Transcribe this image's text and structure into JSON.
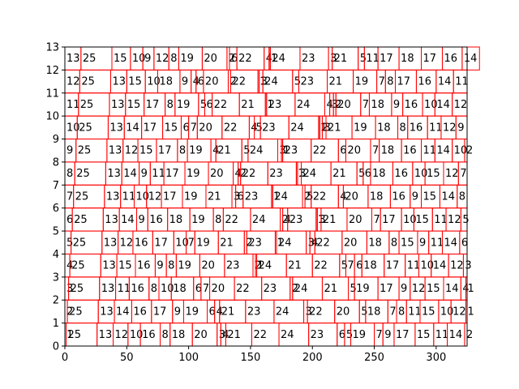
{
  "chart_data": {
    "type": "heatmap",
    "title": "",
    "xlabel": "",
    "ylabel": "",
    "xlim": [
      0,
      325
    ],
    "ylim": [
      0,
      13
    ],
    "grid": false,
    "legend": "none",
    "cell_color": "#ff0000",
    "text_color": "#000000",
    "x_ticks": [
      0,
      50,
      100,
      150,
      200,
      250,
      300
    ],
    "x_tick_labels": [
      "0",
      "50",
      "100",
      "150",
      "200",
      "250",
      "300"
    ],
    "y_ticks": [
      0,
      1,
      2,
      3,
      4,
      5,
      6,
      7,
      8,
      9,
      10,
      11,
      12,
      13
    ],
    "y_tick_labels": [
      "0",
      "1",
      "2",
      "3",
      "4",
      "5",
      "6",
      "7",
      "8",
      "9",
      "10",
      "11",
      "12",
      "13"
    ],
    "rows": [
      [
        1,
        25,
        13,
        12,
        10,
        16,
        8,
        18,
        20,
        3,
        4,
        21,
        22,
        24,
        23,
        6,
        5,
        19,
        7,
        9,
        17,
        15,
        11,
        14,
        2
      ],
      [
        2,
        25,
        13,
        14,
        16,
        17,
        9,
        19,
        6,
        4,
        21,
        23,
        24,
        3,
        22,
        20,
        5,
        18,
        7,
        8,
        11,
        15,
        10,
        12,
        1
      ],
      [
        3,
        25,
        13,
        11,
        16,
        8,
        10,
        18,
        6,
        7,
        20,
        22,
        23,
        2,
        24,
        21,
        5,
        19,
        17,
        9,
        12,
        15,
        14,
        4,
        1
      ],
      [
        4,
        25,
        13,
        15,
        16,
        9,
        8,
        19,
        20,
        23,
        2,
        1,
        24,
        21,
        22,
        5,
        7,
        6,
        18,
        17,
        11,
        10,
        14,
        12,
        3
      ],
      [
        5,
        25,
        13,
        12,
        16,
        17,
        10,
        7,
        19,
        21,
        2,
        23,
        1,
        24,
        3,
        4,
        22,
        20,
        18,
        8,
        15,
        9,
        11,
        14,
        6
      ],
      [
        6,
        25,
        13,
        14,
        9,
        16,
        18,
        19,
        8,
        22,
        24,
        2,
        4,
        23,
        1,
        3,
        21,
        20,
        7,
        17,
        10,
        15,
        11,
        12,
        5
      ],
      [
        7,
        25,
        13,
        11,
        10,
        12,
        17,
        19,
        21,
        3,
        6,
        23,
        1,
        24,
        2,
        5,
        22,
        4,
        20,
        18,
        16,
        9,
        15,
        14,
        8
      ],
      [
        8,
        25,
        13,
        14,
        9,
        11,
        17,
        19,
        20,
        4,
        2,
        22,
        23,
        1,
        3,
        24,
        21,
        5,
        6,
        18,
        16,
        10,
        15,
        12,
        7
      ],
      [
        9,
        25,
        13,
        12,
        15,
        17,
        8,
        19,
        4,
        21,
        5,
        24,
        3,
        1,
        23,
        22,
        6,
        20,
        7,
        18,
        16,
        11,
        14,
        10,
        2
      ],
      [
        10,
        25,
        13,
        14,
        17,
        15,
        6,
        7,
        20,
        22,
        4,
        5,
        23,
        24,
        1,
        2,
        3,
        21,
        19,
        18,
        8,
        16,
        11,
        12,
        9
      ],
      [
        11,
        25,
        13,
        15,
        17,
        8,
        19,
        5,
        6,
        22,
        21,
        1,
        23,
        24,
        4,
        3,
        2,
        20,
        7,
        18,
        9,
        16,
        10,
        14,
        12
      ],
      [
        12,
        25,
        13,
        15,
        10,
        18,
        9,
        4,
        6,
        20,
        2,
        22,
        1,
        3,
        24,
        5,
        23,
        21,
        19,
        7,
        8,
        17,
        16,
        14,
        11
      ],
      [
        13,
        25,
        15,
        10,
        9,
        12,
        8,
        19,
        20,
        2,
        6,
        22,
        4,
        1,
        24,
        23,
        3,
        21,
        5,
        11,
        17,
        18,
        17,
        16,
        14
      ]
    ]
  }
}
